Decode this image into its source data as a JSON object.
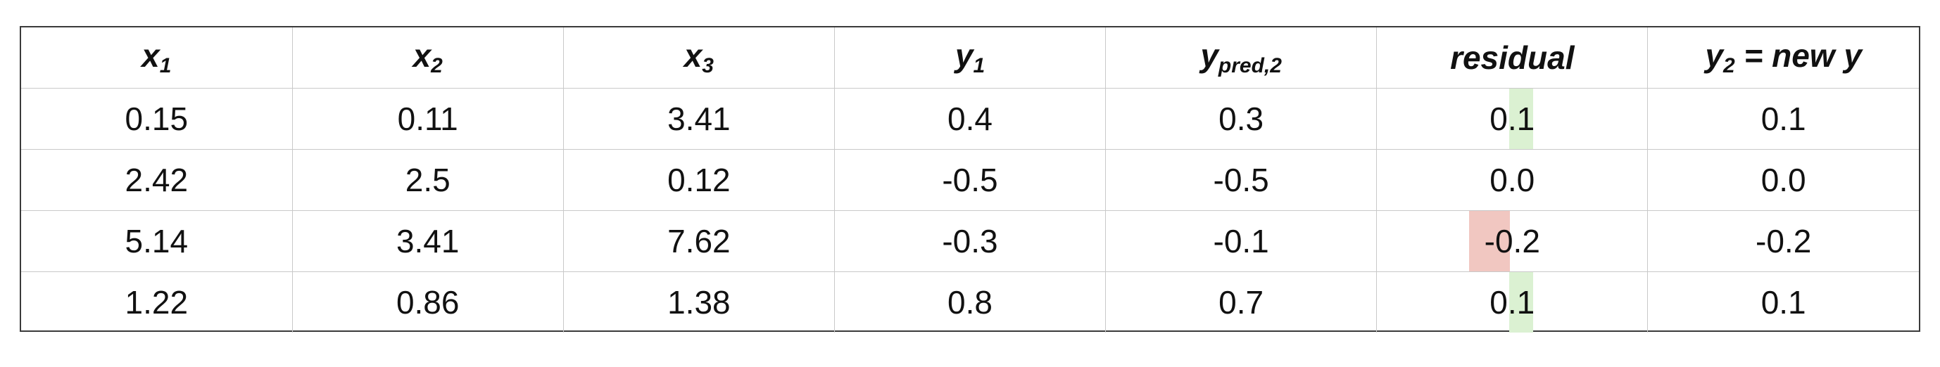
{
  "table": {
    "headers": [
      {
        "base": "x",
        "sub": "1",
        "rest": ""
      },
      {
        "base": "x",
        "sub": "2",
        "rest": ""
      },
      {
        "base": "x",
        "sub": "3",
        "rest": ""
      },
      {
        "base": "y",
        "sub": "1",
        "rest": ""
      },
      {
        "base": "y",
        "sub": "pred,2",
        "rest": ""
      },
      {
        "base": "residual",
        "sub": "",
        "rest": ""
      },
      {
        "base": "y",
        "sub": "2",
        "rest": " = new y"
      }
    ],
    "rows": [
      [
        "0.15",
        "0.11",
        "3.41",
        "0.4",
        "0.3",
        "0.1",
        "0.1"
      ],
      [
        "2.42",
        "2.5",
        "0.12",
        "-0.5",
        "-0.5",
        "0.0",
        "0.0"
      ],
      [
        "5.14",
        "3.41",
        "7.62",
        "-0.3",
        "-0.1",
        "-0.2",
        "-0.2"
      ],
      [
        "1.22",
        "0.86",
        "1.38",
        "0.8",
        "0.7",
        "0.1",
        "0.1"
      ]
    ],
    "residual_highlights": [
      "positive",
      "none",
      "negative",
      "positive"
    ],
    "highlight_colors": {
      "positive": "#dbf1d2",
      "negative": "#f1c7c1"
    }
  }
}
